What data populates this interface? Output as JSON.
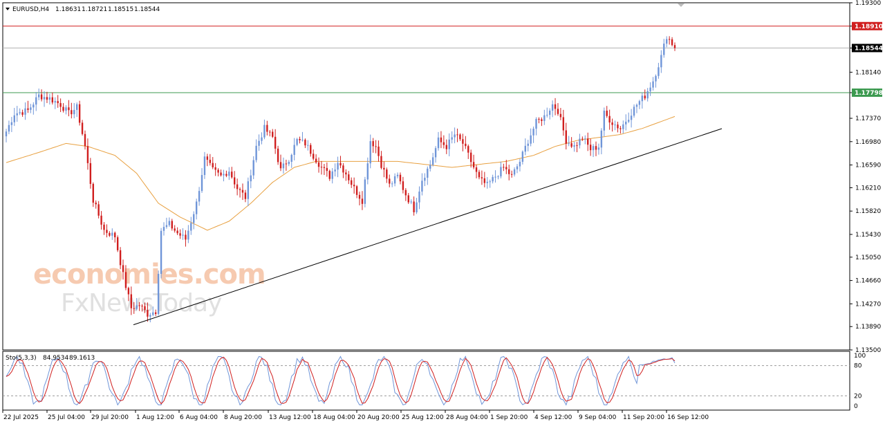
{
  "header": {
    "symbol": "EURUSD,H4",
    "open": "1.18631",
    "high": "1.18721",
    "low": "1.18515",
    "close": "1.18544"
  },
  "indicator": {
    "name": "Sto(5,3,3)",
    "main": "84.9534",
    "signal": "89.1613",
    "levels": [
      "100",
      "80",
      "20",
      "0"
    ]
  },
  "watermark": {
    "line1": "economies.com",
    "line2": "FxNewsToday"
  },
  "colors": {
    "bull": "#6f95d8",
    "bear": "#d01e1e",
    "ma": "#e8a040",
    "resistance": "#d01e1e",
    "support": "#3c9a50",
    "current_price": "#000000",
    "trendline": "#000000",
    "stoch_main": "#6f95d8",
    "stoch_signal": "#d01e1e"
  },
  "chart_data": [
    {
      "type": "candlestick",
      "title": "EURUSD,H4",
      "ylim": [
        1.135,
        1.193
      ],
      "y_ticks": [
        "1.19300",
        "1.18910",
        "1.18544",
        "1.18140",
        "1.17798",
        "1.17370",
        "1.16980",
        "1.16590",
        "1.16210",
        "1.15820",
        "1.15430",
        "1.15050",
        "1.14660",
        "1.14270",
        "1.13890",
        "1.13500"
      ],
      "x_tick_labels": [
        "22 Jul 2025",
        "25 Jul 04:00",
        "29 Jul 20:00",
        "1 Aug 12:00",
        "6 Aug 04:00",
        "8 Aug 20:00",
        "13 Aug 12:00",
        "18 Aug 04:00",
        "20 Aug 20:00",
        "25 Aug 12:00",
        "28 Aug 04:00",
        "1 Sep 20:00",
        "4 Sep 12:00",
        "9 Sep 04:00",
        "11 Sep 20:00",
        "16 Sep 12:00"
      ],
      "price_tags": {
        "resistance": "1.18910",
        "current": "1.18544",
        "support": "1.17798"
      },
      "levels": {
        "resistance": 1.1891,
        "current": 1.18544,
        "support": 1.17798
      },
      "trendline": [
        [
          1.1392,
          0
        ],
        [
          1.1728,
          1
        ]
      ],
      "close_anchors": [
        [
          0,
          1.1715
        ],
        [
          3,
          1.1745
        ],
        [
          8,
          1.175
        ],
        [
          12,
          1.1775
        ],
        [
          16,
          1.177
        ],
        [
          20,
          1.176
        ],
        [
          23,
          1.1745
        ],
        [
          26,
          1.1755
        ],
        [
          29,
          1.169
        ],
        [
          32,
          1.16
        ],
        [
          36,
          1.155
        ],
        [
          40,
          1.154
        ],
        [
          43,
          1.1475
        ],
        [
          46,
          1.142
        ],
        [
          49,
          1.1425
        ],
        [
          52,
          1.141
        ],
        [
          55,
          1.1415
        ],
        [
          57,
          1.155
        ],
        [
          60,
          1.156
        ],
        [
          63,
          1.1545
        ],
        [
          66,
          1.1535
        ],
        [
          70,
          1.1595
        ],
        [
          73,
          1.167
        ],
        [
          76,
          1.165
        ],
        [
          79,
          1.164
        ],
        [
          82,
          1.165
        ],
        [
          85,
          1.162
        ],
        [
          88,
          1.1605
        ],
        [
          92,
          1.169
        ],
        [
          95,
          1.172
        ],
        [
          98,
          1.1705
        ],
        [
          101,
          1.165
        ],
        [
          104,
          1.167
        ],
        [
          107,
          1.17
        ],
        [
          110,
          1.1695
        ],
        [
          113,
          1.1675
        ],
        [
          116,
          1.1655
        ],
        [
          119,
          1.164
        ],
        [
          122,
          1.1665
        ],
        [
          125,
          1.1645
        ],
        [
          128,
          1.162
        ],
        [
          131,
          1.16
        ],
        [
          134,
          1.17
        ],
        [
          136,
          1.169
        ],
        [
          138,
          1.166
        ],
        [
          141,
          1.1625
        ],
        [
          144,
          1.164
        ],
        [
          147,
          1.161
        ],
        [
          150,
          1.1585
        ],
        [
          153,
          1.1635
        ],
        [
          156,
          1.166
        ],
        [
          159,
          1.17
        ],
        [
          162,
          1.169
        ],
        [
          165,
          1.171
        ],
        [
          168,
          1.1695
        ],
        [
          171,
          1.1665
        ],
        [
          174,
          1.1635
        ],
        [
          177,
          1.1625
        ],
        [
          180,
          1.164
        ],
        [
          183,
          1.1655
        ],
        [
          186,
          1.164
        ],
        [
          189,
          1.1665
        ],
        [
          192,
          1.17
        ],
        [
          195,
          1.173
        ],
        [
          198,
          1.174
        ],
        [
          201,
          1.176
        ],
        [
          203,
          1.175
        ],
        [
          206,
          1.17
        ],
        [
          209,
          1.169
        ],
        [
          212,
          1.1705
        ],
        [
          215,
          1.1685
        ],
        [
          218,
          1.169
        ],
        [
          220,
          1.1745
        ],
        [
          223,
          1.173
        ],
        [
          226,
          1.172
        ],
        [
          229,
          1.174
        ],
        [
          232,
          1.176
        ],
        [
          235,
          1.1775
        ],
        [
          238,
          1.18
        ],
        [
          241,
          1.184
        ],
        [
          243,
          1.1875
        ],
        [
          245,
          1.1862
        ],
        [
          246,
          1.1854
        ]
      ],
      "ma_anchors": [
        [
          0,
          1.1663
        ],
        [
          12,
          1.168
        ],
        [
          22,
          1.1695
        ],
        [
          30,
          1.169
        ],
        [
          40,
          1.1675
        ],
        [
          48,
          1.1645
        ],
        [
          56,
          1.1595
        ],
        [
          64,
          1.1572
        ],
        [
          74,
          1.155
        ],
        [
          82,
          1.1565
        ],
        [
          90,
          1.1595
        ],
        [
          98,
          1.163
        ],
        [
          106,
          1.1655
        ],
        [
          114,
          1.1665
        ],
        [
          124,
          1.1665
        ],
        [
          134,
          1.1665
        ],
        [
          144,
          1.1665
        ],
        [
          154,
          1.166
        ],
        [
          164,
          1.1655
        ],
        [
          174,
          1.166
        ],
        [
          184,
          1.1665
        ],
        [
          194,
          1.1675
        ],
        [
          202,
          1.169
        ],
        [
          210,
          1.17
        ],
        [
          218,
          1.1705
        ],
        [
          226,
          1.171
        ],
        [
          234,
          1.172
        ],
        [
          240,
          1.173
        ],
        [
          246,
          1.174
        ]
      ],
      "candle_count": 247
    },
    {
      "type": "line",
      "title": "Sto(5,3,3)",
      "ylim": [
        0,
        100
      ],
      "levels": [
        20,
        80
      ],
      "series": [
        {
          "name": "Main",
          "values": []
        },
        {
          "name": "Signal",
          "values": []
        }
      ]
    }
  ]
}
